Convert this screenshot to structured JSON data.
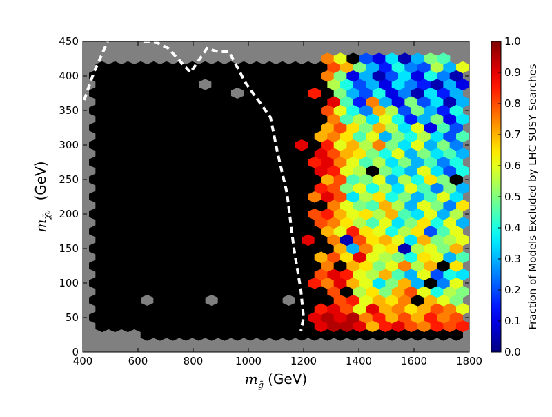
{
  "chart_data": {
    "type": "hexbin",
    "xlabel": {
      "symbol": "m",
      "subscript": "g̃",
      "unit": "(GeV)"
    },
    "ylabel": {
      "symbol": "m",
      "subscript": "χ̃₀",
      "unit": "(GeV)"
    },
    "colorbar_label": "Fraction of Models Excluded by LHC SUSY Searches",
    "xlim": [
      400,
      1800
    ],
    "ylim": [
      0,
      450
    ],
    "xticks": [
      400,
      600,
      800,
      1000,
      1200,
      1400,
      1600,
      1800
    ],
    "yticks": [
      0,
      50,
      100,
      150,
      200,
      250,
      300,
      350,
      400,
      450
    ],
    "gridsize": [
      30,
      18
    ],
    "cmap": "jet",
    "clim": [
      0,
      1
    ],
    "zero_color": "#000000",
    "background": "#808080",
    "colorbar_ticks": [
      {
        "value": 0,
        "label": "0.0"
      },
      {
        "value": 0.1,
        "label": "0.1"
      },
      {
        "value": 0.2,
        "label": "0.2"
      },
      {
        "value": 0.3,
        "label": "0.3"
      },
      {
        "value": 0.4,
        "label": "0.4"
      },
      {
        "value": 0.5,
        "label": "0.5"
      },
      {
        "value": 0.6,
        "label": "0.6"
      },
      {
        "value": 0.7,
        "label": "0.7"
      },
      {
        "value": 0.8,
        "label": "0.8"
      },
      {
        "value": 0.9,
        "label": "0.9"
      },
      {
        "value": 1,
        "label": "1.0"
      }
    ],
    "values": [
      [
        null,
        null,
        null,
        null,
        null,
        null,
        null,
        null,
        null,
        null,
        null,
        null,
        null,
        null,
        null,
        null,
        null,
        null,
        null,
        null,
        null,
        null,
        null,
        null,
        null,
        null,
        null,
        null,
        null,
        null,
        null
      ],
      [
        null,
        null,
        null,
        null,
        null,
        null,
        null,
        null,
        null,
        null,
        null,
        null,
        null,
        null,
        null,
        null,
        null,
        null,
        null,
        null,
        null,
        null,
        null,
        null,
        null,
        null,
        null,
        null,
        null,
        null
      ],
      [
        null,
        null,
        null,
        null,
        null,
        0,
        0,
        0,
        0,
        0,
        0,
        0,
        0,
        0,
        0,
        0,
        0,
        0,
        0,
        0,
        0,
        0,
        0,
        0,
        0,
        0,
        0,
        0,
        0,
        0,
        null
      ],
      [
        null,
        0,
        0,
        0,
        0,
        0,
        0,
        0,
        0,
        0,
        0,
        0,
        0,
        0,
        0,
        0,
        0,
        0,
        0.9,
        0.95,
        0.95,
        0.9,
        0.7,
        0.85,
        0.9,
        0.8,
        0.75,
        0.85,
        0.8,
        0.85
      ],
      [
        null,
        0,
        0,
        0,
        0,
        0,
        0,
        0,
        0,
        0,
        0,
        0,
        0,
        0,
        0,
        0,
        0,
        0,
        0.9,
        0.95,
        0.9,
        0.95,
        0.75,
        0.85,
        0.7,
        0.8,
        0.7,
        0.85,
        0.75,
        0.8,
        null
      ],
      [
        null,
        0,
        0,
        0,
        0,
        0,
        0,
        0,
        0,
        0,
        0,
        0,
        0,
        0,
        0,
        0,
        0,
        0,
        0.85,
        0.9,
        0.8,
        0.6,
        0.9,
        0.7,
        0.75,
        0.65,
        0.7,
        0.8,
        0.75,
        0.6
      ],
      [
        null,
        0,
        0,
        0,
        0,
        null,
        0,
        0,
        0,
        0,
        null,
        0,
        0,
        0,
        0,
        0,
        null,
        0,
        0,
        0,
        0.8,
        0.85,
        0.6,
        0.7,
        0.65,
        0.75,
        0,
        0.7,
        0.6,
        0.5,
        null
      ],
      [
        null,
        0,
        0,
        0,
        0,
        0,
        0,
        0,
        0,
        0,
        0,
        0,
        0,
        0,
        0,
        0,
        0,
        0,
        0,
        0.8,
        0,
        0.55,
        0.65,
        0.5,
        0.7,
        0.8,
        0.6,
        0.4,
        0.55,
        0.5
      ],
      [
        null,
        0,
        0,
        0,
        0,
        0,
        0,
        0,
        0,
        0,
        0,
        0,
        0,
        0,
        0,
        0,
        0,
        0,
        0.85,
        0.75,
        0.9,
        0.7,
        0.6,
        0.35,
        0.5,
        0.7,
        0.3,
        0,
        0.25,
        0.6,
        null
      ],
      [
        null,
        0,
        0,
        0,
        0,
        0,
        0,
        0,
        0,
        0,
        0,
        0,
        0,
        0,
        0,
        0,
        0,
        0,
        0.8,
        0.9,
        0.85,
        0.6,
        0.55,
        0.7,
        0.45,
        0.3,
        0.6,
        0.2,
        0.4,
        0.35
      ],
      [
        null,
        0,
        0,
        0,
        0,
        0,
        0,
        0,
        0,
        0,
        0,
        0,
        0,
        0,
        0,
        0,
        0,
        0,
        0,
        0.75,
        0,
        0.7,
        0.65,
        0.5,
        0.6,
        0.75,
        0.55,
        0.7,
        0,
        0.65,
        null
      ],
      [
        null,
        0,
        0,
        0,
        0,
        0,
        0,
        0,
        0,
        0,
        0,
        0,
        0,
        0,
        0,
        0,
        0,
        0,
        0.7,
        0.8,
        0.65,
        0.9,
        0.6,
        0.55,
        0.5,
        0.4,
        0.65,
        0.6,
        0.3,
        0.45
      ],
      [
        null,
        0,
        0,
        0,
        0,
        0,
        0,
        0,
        0,
        0,
        0,
        0,
        0,
        0,
        0,
        0,
        0,
        0,
        0,
        0,
        0.7,
        0.3,
        0.75,
        0.6,
        0.65,
        0.05,
        0.55,
        0.6,
        0.5,
        0.7,
        null
      ],
      [
        null,
        0,
        0,
        0,
        0,
        0,
        0,
        0,
        0,
        0,
        0,
        0,
        0,
        0,
        0,
        0,
        0,
        0.9,
        0,
        0.75,
        0.05,
        0.8,
        0.65,
        0.7,
        0.6,
        0.35,
        0.7,
        0.5,
        0.55,
        0.6
      ],
      [
        null,
        0,
        0,
        0,
        0,
        0,
        0,
        0,
        0,
        0,
        0,
        0,
        0,
        0,
        0,
        0,
        0,
        0,
        0,
        0.7,
        0.6,
        0.85,
        0.65,
        0.6,
        0.4,
        0.55,
        0.65,
        0.2,
        0.45,
        0.6,
        null
      ],
      [
        null,
        0,
        0,
        0,
        0,
        0,
        0,
        0,
        0,
        0,
        0,
        0,
        0,
        0,
        0,
        0,
        0,
        0,
        0.8,
        0.75,
        0.65,
        0.55,
        0.45,
        0.6,
        0.35,
        0.5,
        0.65,
        0.4,
        0.6,
        0.3
      ],
      [
        null,
        0,
        0,
        0,
        0,
        0,
        0,
        0,
        0,
        0,
        0,
        0,
        0,
        0,
        0,
        0,
        0,
        0,
        0.8,
        0.85,
        0.7,
        0.6,
        0.65,
        0.55,
        0.7,
        0.45,
        0.35,
        0.6,
        0.3,
        0.55,
        null
      ],
      [
        null,
        0,
        0,
        0,
        0,
        0,
        0,
        0,
        0,
        0,
        0,
        0,
        0,
        0,
        0,
        0,
        0,
        0,
        0,
        0.75,
        0.6,
        0.5,
        0.45,
        0.7,
        0.55,
        0.3,
        0.6,
        0.5,
        0.25,
        0.65
      ],
      [
        null,
        0,
        0,
        0,
        0,
        0,
        0,
        0,
        0,
        0,
        0,
        0,
        0,
        0,
        0,
        0,
        0,
        0,
        0.75,
        0.9,
        0.8,
        0.35,
        0.55,
        0.65,
        0.4,
        0.5,
        0.3,
        0.45,
        0.6,
        0.35,
        null
      ],
      [
        null,
        0,
        0,
        0,
        0,
        0,
        0,
        0,
        0,
        0,
        0,
        0,
        0,
        0,
        0,
        0,
        0,
        0,
        0.85,
        0.8,
        0.5,
        0.6,
        0.4,
        0.55,
        0.35,
        0.6,
        0.45,
        0.25,
        0.5,
        0.3
      ],
      [
        null,
        0,
        0,
        0,
        0,
        0,
        0,
        0,
        0,
        0,
        0,
        0,
        0,
        0,
        0,
        0,
        0,
        0,
        0,
        0.7,
        0.8,
        0.45,
        0.5,
        0.6,
        0.3,
        0.55,
        0.4,
        0.65,
        0.5,
        0,
        null
      ],
      [
        null,
        0,
        0,
        0,
        0,
        0,
        0,
        0,
        0,
        0,
        0,
        0,
        0,
        0,
        0,
        0,
        0,
        0,
        0.9,
        0.85,
        0.6,
        0.55,
        0,
        0.5,
        0.4,
        0.3,
        0.6,
        0.35,
        0.2,
        0.4
      ],
      [
        null,
        0,
        0,
        0,
        0,
        0,
        0,
        0,
        0,
        0,
        0,
        0,
        0,
        0,
        0,
        0,
        0,
        0,
        0.85,
        0.9,
        0.75,
        0.6,
        0.45,
        0.55,
        0.35,
        0.5,
        0.3,
        0.45,
        0.25,
        0.4,
        null
      ],
      [
        null,
        0,
        0,
        0,
        0,
        0,
        0,
        0,
        0,
        0,
        0,
        0,
        0,
        0,
        0,
        0,
        0,
        0,
        0.9,
        0.8,
        0.7,
        0.65,
        0.5,
        0.4,
        0.6,
        0.3,
        0.5,
        0.35,
        0.45,
        0.3
      ],
      [
        null,
        0,
        0,
        0,
        0,
        0,
        0,
        0,
        0,
        0,
        0,
        0,
        0,
        0,
        0,
        0,
        0,
        0.9,
        0,
        0.85,
        0.6,
        0.7,
        0.55,
        0.75,
        0.5,
        0.35,
        0.6,
        0.3,
        0.5,
        0.25,
        null
      ],
      [
        null,
        0,
        0,
        0,
        0,
        0,
        0,
        0,
        0,
        0,
        0,
        0,
        0,
        0,
        0,
        0,
        0,
        0,
        0.7,
        0.75,
        0.65,
        0.45,
        0.6,
        0.3,
        0.5,
        0.4,
        0.55,
        0.35,
        0.2,
        0.45
      ],
      [
        null,
        0,
        0,
        0,
        0,
        0,
        0,
        0,
        0,
        0,
        0,
        0,
        0,
        0,
        0,
        0,
        0,
        0,
        0,
        0.7,
        0.8,
        0.65,
        0.5,
        0.7,
        0.55,
        0.35,
        0.6,
        0.1,
        0.45,
        0.2,
        null
      ],
      [
        null,
        0,
        0,
        0,
        0,
        0,
        0,
        0,
        0,
        0,
        0,
        0,
        0,
        0,
        0,
        0,
        0,
        0,
        0,
        0.75,
        0.45,
        0.55,
        0.35,
        0.6,
        0.4,
        0.15,
        0.3,
        0.5,
        0.1,
        0.35
      ],
      [
        null,
        0,
        0,
        0,
        0,
        0,
        0,
        0,
        0,
        0,
        0,
        0,
        0,
        0,
        0,
        0,
        0,
        0,
        0,
        0.8,
        0.6,
        0.4,
        0.25,
        0.7,
        0.55,
        0.2,
        0.5,
        0.3,
        0.15,
        0.4,
        null
      ],
      [
        null,
        0,
        0,
        0,
        0,
        0,
        0,
        0,
        0,
        0,
        0,
        0,
        0,
        0,
        0,
        0,
        0,
        0,
        0,
        0.9,
        0.45,
        0.15,
        0.75,
        0.3,
        0.1,
        0.5,
        0.2,
        0.35,
        0.05,
        0.3
      ],
      [
        null,
        0,
        0,
        0,
        0,
        0,
        0,
        0,
        0,
        0,
        0,
        0,
        null,
        0,
        0,
        0,
        0,
        0,
        0.85,
        0,
        0.5,
        0.3,
        0.2,
        0.4,
        0.1,
        0.25,
        0.05,
        0.35,
        0.15,
        0.3,
        null
      ],
      [
        null,
        0,
        0,
        0,
        0,
        0,
        0,
        0,
        0,
        null,
        0,
        0,
        0,
        0,
        0,
        0,
        0,
        0,
        0,
        0.55,
        0.4,
        0.2,
        0.3,
        0.1,
        0.35,
        0.25,
        0.15,
        0.05,
        0.3,
        0.1
      ],
      [
        null,
        0,
        0,
        0,
        0,
        0,
        0,
        0,
        0,
        0,
        0,
        0,
        0,
        0,
        0,
        0,
        0,
        0,
        0,
        0.75,
        0.5,
        0.1,
        0.3,
        0.05,
        0.2,
        0.35,
        0.1,
        0.4,
        0.25,
        0.05,
        null
      ],
      [
        null,
        0,
        0,
        0,
        0,
        0,
        0,
        0,
        0,
        0,
        0,
        0,
        0,
        0,
        0,
        0,
        0,
        0,
        0,
        0.8,
        0.7,
        0.5,
        0.3,
        0.15,
        0.4,
        0.25,
        0.2,
        0.55,
        0.3,
        0.6
      ],
      [
        null,
        null,
        null,
        null,
        null,
        null,
        null,
        null,
        null,
        null,
        null,
        null,
        null,
        null,
        null,
        null,
        null,
        null,
        null,
        0.75,
        0.6,
        0,
        0.2,
        0.1,
        0.35,
        0.05,
        0.3,
        0.5,
        0.45,
        null,
        null
      ],
      [
        null,
        null,
        null,
        null,
        null,
        null,
        null,
        null,
        null,
        null,
        null,
        null,
        null,
        null,
        null,
        null,
        null,
        null,
        null,
        null,
        null,
        null,
        null,
        null,
        null,
        null,
        null,
        null,
        null,
        null
      ],
      [
        null,
        null,
        null,
        null,
        null,
        null,
        null,
        null,
        null,
        null,
        null,
        null,
        null,
        null,
        null,
        null,
        null,
        null,
        null,
        null,
        null,
        null,
        null,
        null,
        null,
        null,
        null,
        null,
        null,
        null,
        null
      ]
    ],
    "contour": {
      "color": "#ffffff",
      "dashed": true,
      "x": [
        405,
        440,
        490,
        null,
        620,
        670,
        710,
        790,
        850,
        890,
        930,
        990,
        1080,
        1105,
        1140,
        1165,
        1190,
        1200,
        1190
      ],
      "y": [
        365,
        405,
        450,
        null,
        450,
        448,
        440,
        405,
        440,
        435,
        435,
        390,
        340,
        290,
        230,
        150,
        90,
        50,
        30
      ]
    }
  }
}
